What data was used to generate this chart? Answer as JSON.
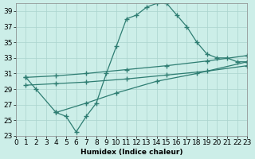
{
  "xlabel": "Humidex (Indice chaleur)",
  "bg_color": "#cceee8",
  "grid_color": "#aad4ce",
  "line_color": "#2e7d72",
  "xlim": [
    0,
    23
  ],
  "ylim": [
    23,
    40
  ],
  "xticks": [
    0,
    1,
    2,
    3,
    4,
    5,
    6,
    7,
    8,
    9,
    10,
    11,
    12,
    13,
    14,
    15,
    16,
    17,
    18,
    19,
    20,
    21,
    22,
    23
  ],
  "yticks": [
    23,
    25,
    27,
    29,
    31,
    33,
    35,
    37,
    39
  ],
  "curve1_x": [
    1,
    2,
    4,
    5,
    6,
    7,
    8,
    9,
    10,
    11,
    12,
    13,
    14,
    15,
    16,
    17,
    18,
    19,
    20,
    21,
    22,
    23
  ],
  "curve1_y": [
    30.5,
    29.0,
    26.0,
    25.5,
    23.5,
    25.5,
    27.2,
    31.0,
    34.5,
    38.0,
    38.5,
    39.5,
    40.0,
    40.0,
    38.5,
    37.0,
    35.0,
    33.5,
    33.0,
    33.0,
    32.5,
    32.5
  ],
  "line_top_x": [
    1,
    4,
    7,
    11,
    15,
    19,
    23
  ],
  "line_top_y": [
    30.5,
    30.7,
    31.0,
    31.5,
    32.0,
    32.6,
    33.3
  ],
  "line_mid_x": [
    1,
    4,
    7,
    11,
    15,
    19,
    23
  ],
  "line_mid_y": [
    29.5,
    29.7,
    29.9,
    30.3,
    30.8,
    31.3,
    32.0
  ],
  "line_bot_x": [
    4,
    7,
    10,
    14,
    18,
    23
  ],
  "line_bot_y": [
    26.0,
    27.2,
    28.5,
    30.0,
    31.0,
    32.5
  ],
  "font_size": 6.5
}
